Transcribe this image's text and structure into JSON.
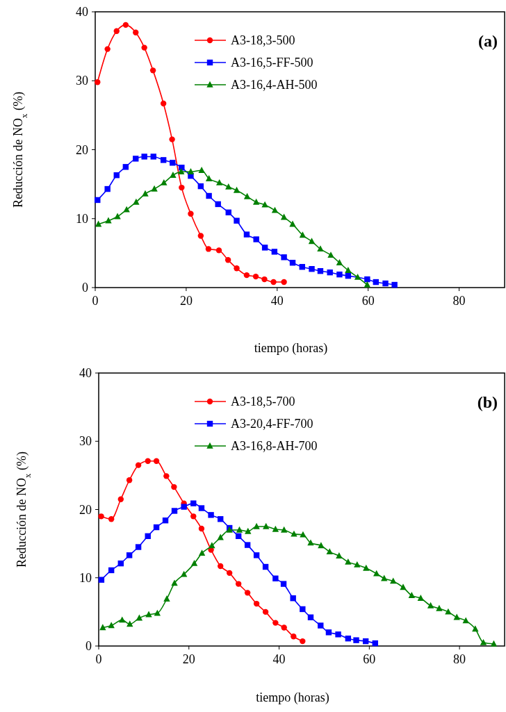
{
  "chart_data": [
    {
      "type": "line",
      "xlabel": "tiempo (horas)",
      "ylabel": "Reducción de NO$_{x}$ (%)",
      "xlim": [
        0,
        90
      ],
      "ylim": [
        0,
        40
      ],
      "xticks": [
        0,
        20,
        40,
        60,
        80
      ],
      "yticks": [
        0,
        10,
        20,
        30,
        40
      ],
      "legend": "top",
      "grid": false,
      "annotations": [
        "(a)"
      ],
      "series": [
        {
          "name": "A3-18,3-500",
          "color": "#ff0000",
          "marker": "circle",
          "x": [
            0.5,
            2.7,
            4.7,
            6.7,
            8.9,
            10.8,
            12.7,
            15,
            16.9,
            19,
            21,
            23.2,
            24.9,
            27.2,
            29.2,
            31.1,
            33.3,
            35.3,
            37.2,
            39.2,
            41.5
          ],
          "values": [
            29.8,
            34.6,
            37.2,
            38.1,
            37,
            34.8,
            31.5,
            26.7,
            21.5,
            14.5,
            10.7,
            7.5,
            5.6,
            5.4,
            4,
            2.8,
            1.8,
            1.6,
            1.2,
            0.8,
            0.8
          ]
        },
        {
          "name": "A3-16,5-FF-500",
          "color": "#0000ff",
          "marker": "square",
          "x": [
            0.5,
            2.7,
            4.7,
            6.7,
            8.9,
            10.8,
            12.8,
            15,
            17,
            19,
            21,
            23.2,
            25,
            27,
            29.3,
            31.1,
            33.3,
            35.4,
            37.3,
            39.4,
            41.5,
            43.4,
            45.5,
            47.6,
            49.5,
            51.6,
            53.7,
            55.6,
            59.8,
            61.7,
            63.8,
            65.8
          ],
          "values": [
            12.7,
            14.3,
            16.3,
            17.5,
            18.7,
            19,
            19,
            18.5,
            18.1,
            17.4,
            16.2,
            14.7,
            13.3,
            12.1,
            10.9,
            9.7,
            7.7,
            7,
            5.8,
            5.2,
            4.4,
            3.6,
            3,
            2.7,
            2.4,
            2.2,
            1.9,
            1.7,
            1.2,
            0.8,
            0.6,
            0.4
          ]
        },
        {
          "name": "A3-16,4-AH-500",
          "color": "#008000",
          "marker": "triangle",
          "x": [
            0.7,
            2.9,
            4.9,
            6.9,
            9,
            11,
            13,
            15.1,
            17.1,
            18.9,
            21,
            23.4,
            25,
            27.3,
            29.3,
            31.1,
            33.4,
            35.4,
            37.3,
            39.5,
            41.5,
            43.4,
            45.6,
            47.6,
            49.5,
            51.8,
            53.7,
            55.6,
            57.7,
            59.8
          ],
          "values": [
            9.2,
            9.7,
            10.3,
            11.3,
            12.4,
            13.6,
            14.3,
            15.2,
            16.3,
            16.8,
            16.8,
            17,
            15.8,
            15.2,
            14.6,
            14.1,
            13.2,
            12.4,
            12,
            11.2,
            10.2,
            9.2,
            7.6,
            6.7,
            5.6,
            4.7,
            3.6,
            2.5,
            1.5,
            0.4
          ]
        }
      ]
    },
    {
      "type": "line",
      "xlabel": "tiempo (horas)",
      "ylabel": "Reducción de NO$_{x}$ (%)",
      "xlim": [
        0,
        90
      ],
      "ylim": [
        0,
        40
      ],
      "xticks": [
        0,
        20,
        40,
        60,
        80
      ],
      "yticks": [
        0,
        10,
        20,
        30,
        40
      ],
      "legend": "top",
      "grid": false,
      "annotations": [
        "(b)"
      ],
      "series": [
        {
          "name": "A3-18,5-700",
          "color": "#ff0000",
          "marker": "circle",
          "x": [
            0.55,
            2.8,
            4.9,
            6.8,
            8.8,
            10.9,
            12.8,
            15,
            16.7,
            18.9,
            21,
            22.8,
            24.9,
            27,
            29,
            31,
            33,
            35,
            37,
            39.2,
            41.1,
            43.2,
            45.2
          ],
          "values": [
            19,
            18.6,
            21.5,
            24.3,
            26.5,
            27.1,
            27.1,
            24.9,
            23.3,
            20.9,
            19,
            17.2,
            14.1,
            11.7,
            10.7,
            9.1,
            7.8,
            6.2,
            5,
            3.4,
            2.7,
            1.4,
            0.7
          ]
        },
        {
          "name": "A3-20,4-FF-700",
          "color": "#0000ff",
          "marker": "square",
          "x": [
            0.6,
            2.8,
            4.9,
            6.8,
            8.8,
            10.9,
            12.8,
            14.8,
            16.8,
            18.9,
            21,
            22.8,
            24.9,
            27,
            29,
            31,
            33,
            35,
            37,
            39.2,
            41,
            43.1,
            45.2,
            47,
            49.2,
            51,
            53.1,
            55.3,
            57.1,
            59.2,
            61.3
          ],
          "values": [
            9.7,
            11.1,
            12.1,
            13.3,
            14.5,
            16.1,
            17.4,
            18.4,
            19.8,
            20.4,
            20.9,
            20.2,
            19.2,
            18.6,
            17.3,
            16.1,
            14.8,
            13.3,
            11.6,
            9.9,
            9.1,
            7,
            5.4,
            4.2,
            3,
            2,
            1.7,
            1.1,
            0.85,
            0.7,
            0.4
          ]
        },
        {
          "name": "A3-16,8-AH-700",
          "color": "#008000",
          "marker": "triangle",
          "x": [
            0.9,
            2.8,
            5.2,
            6.9,
            9,
            11.1,
            13,
            15.1,
            16.8,
            18.9,
            21.2,
            22.9,
            25.1,
            27,
            29,
            31.2,
            33.1,
            35,
            37.1,
            39.2,
            41.1,
            43.3,
            45.3,
            47,
            49.3,
            51.2,
            53.3,
            55.3,
            57.3,
            59.3,
            61.6,
            63.3,
            65.3,
            67.5,
            69.4,
            71.4,
            73.6,
            75.5,
            77.5,
            79.4,
            81.4,
            83.5,
            85.3,
            87.6
          ],
          "values": [
            2.7,
            3,
            3.8,
            3.2,
            4.1,
            4.6,
            4.8,
            6.9,
            9.2,
            10.5,
            12.1,
            13.6,
            14.7,
            15.9,
            17,
            17,
            16.8,
            17.5,
            17.5,
            17.1,
            17,
            16.4,
            16.3,
            15.1,
            14.7,
            13.8,
            13.2,
            12.3,
            11.9,
            11.4,
            10.6,
            9.9,
            9.5,
            8.6,
            7.4,
            7,
            5.9,
            5.5,
            5,
            4.2,
            3.7,
            2.5,
            0.5,
            0.3
          ]
        }
      ]
    }
  ]
}
